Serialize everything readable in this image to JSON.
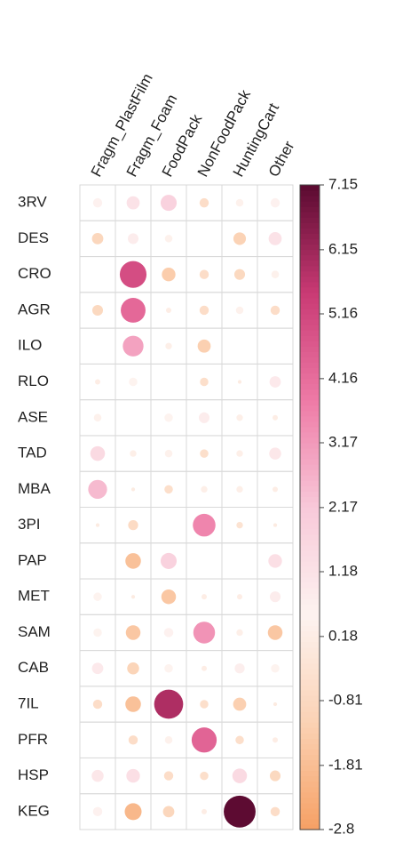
{
  "chart_data": {
    "type": "corrplot",
    "rows": [
      "3RV",
      "DES",
      "CRO",
      "AGR",
      "ILO",
      "RLO",
      "ASE",
      "TAD",
      "MBA",
      "3PI",
      "PAP",
      "MET",
      "SAM",
      "CAB",
      "7IL",
      "PFR",
      "HSP",
      "KEG"
    ],
    "columns": [
      "Fragm_PlastFilm",
      "Fragm_Foam",
      "FoodPack",
      "NonFoodPack",
      "HuntingCart",
      "Other"
    ],
    "values": [
      [
        0.6,
        1.2,
        1.8,
        -0.6,
        0.4,
        0.6
      ],
      [
        -0.9,
        0.8,
        0.4,
        0,
        -1.1,
        1.2
      ],
      [
        0,
        5.0,
        -1.3,
        -0.6,
        -0.8,
        0.4
      ],
      [
        -0.8,
        4.3,
        0.2,
        -0.6,
        0.4,
        -0.6
      ],
      [
        0,
        3.0,
        0.3,
        -1.2,
        0,
        0
      ],
      [
        0.2,
        0.5,
        0,
        -0.5,
        0.1,
        0.9
      ],
      [
        0.4,
        0,
        0.5,
        0.8,
        0.3,
        0.2
      ],
      [
        1.5,
        0.3,
        0.4,
        -0.5,
        0.3,
        1.0
      ],
      [
        2.5,
        0.1,
        -0.5,
        0.3,
        0.3,
        0.2
      ],
      [
        0.1,
        -0.7,
        0,
        3.6,
        -0.3,
        0.1
      ],
      [
        0,
        -1.7,
        1.8,
        0,
        0,
        1.3
      ],
      [
        0.5,
        0.1,
        -1.5,
        0.2,
        0.2,
        0.8
      ],
      [
        0.5,
        -1.5,
        0.6,
        3.3,
        0.3,
        -1.5
      ],
      [
        0.9,
        -1.0,
        0.5,
        0.2,
        0.7,
        0.5
      ],
      [
        -0.6,
        -1.7,
        5.9,
        -0.5,
        -1.2,
        0.1
      ],
      [
        0,
        -0.6,
        0.4,
        4.4,
        -0.5,
        0.2
      ],
      [
        1.0,
        1.3,
        -0.6,
        -0.5,
        1.5,
        -0.8
      ],
      [
        0.6,
        -2.0,
        -0.9,
        0.2,
        7.1,
        -0.6
      ]
    ],
    "clim": [
      -2.8,
      7.15
    ],
    "cticks": [
      7.15,
      6.15,
      5.16,
      4.16,
      3.17,
      2.17,
      1.18,
      0.18,
      -0.81,
      -1.81,
      -2.8
    ],
    "colorscale": [
      "#f6a064",
      "#fbd2b4",
      "#fdf3f0",
      "#f8c9d9",
      "#ee7aa6",
      "#c93a74",
      "#5a0a30"
    ]
  }
}
